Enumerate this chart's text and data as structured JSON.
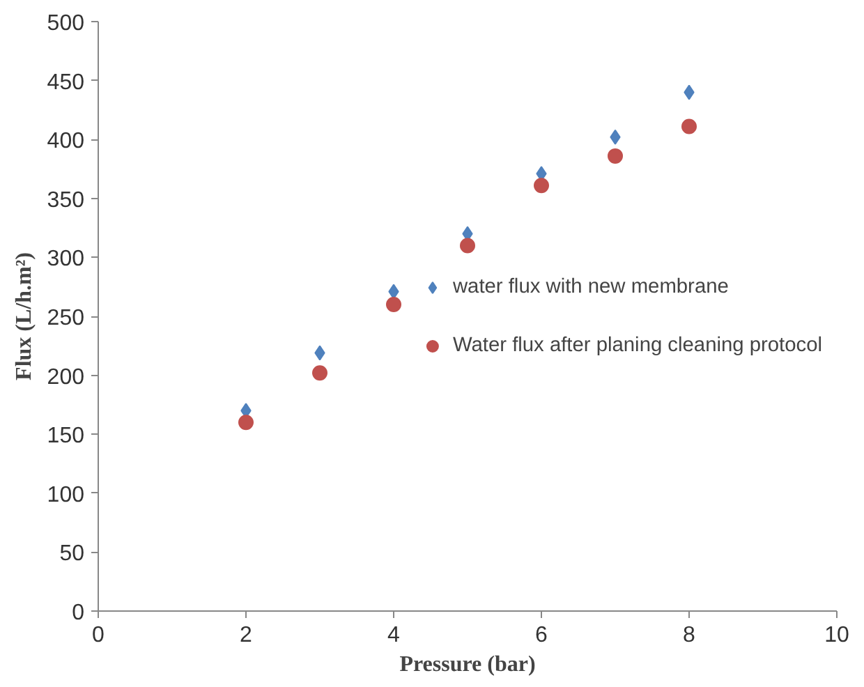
{
  "chart_data": {
    "type": "scatter",
    "xlabel": "Pressure (bar)",
    "ylabel": "Flux (L/h.m²)",
    "x": [
      2,
      3,
      4,
      5,
      6,
      7,
      8
    ],
    "series": [
      {
        "name": "water flux with new membrane",
        "color": "#4f81bd",
        "marker": "diamond",
        "values": [
          170,
          219,
          271,
          320,
          371,
          402,
          440
        ]
      },
      {
        "name": "Water flux after planing cleaning protocol",
        "color": "#c0504d",
        "marker": "circle",
        "values": [
          160,
          202,
          260,
          310,
          361,
          386,
          411
        ]
      }
    ],
    "xlim": [
      0,
      10
    ],
    "xticks": [
      0,
      2,
      4,
      6,
      8,
      10
    ],
    "ylim": [
      0,
      500
    ],
    "yticks": [
      0,
      50,
      100,
      150,
      200,
      250,
      300,
      350,
      400,
      450,
      500
    ],
    "grid": false,
    "legend": "right"
  }
}
